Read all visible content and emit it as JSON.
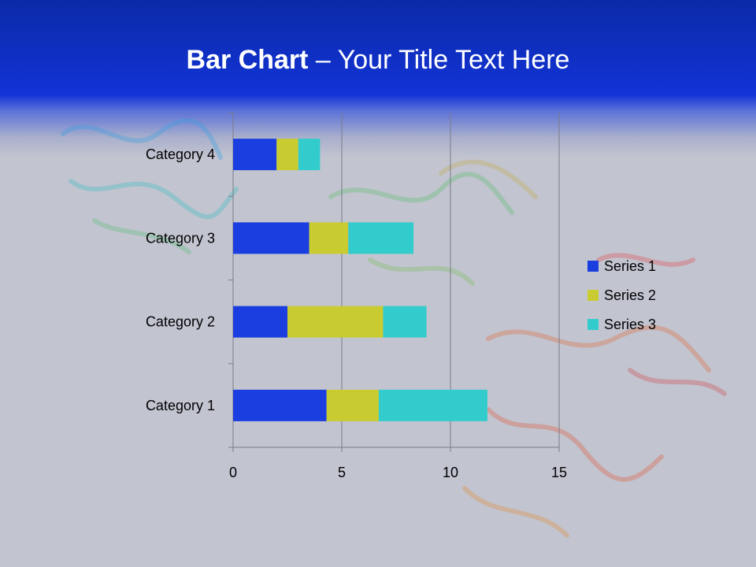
{
  "slide": {
    "title_bold": "Bar Chart",
    "title_dash": " – ",
    "title_rest": "Your Title Text Here"
  },
  "chart_data": {
    "type": "bar",
    "orientation": "horizontal",
    "stacked": true,
    "categories": [
      "Category 1",
      "Category 2",
      "Category 3",
      "Category 4"
    ],
    "series": [
      {
        "name": "Series 1",
        "values": [
          4.3,
          2.5,
          3.5,
          2.0
        ],
        "color": "#1a3ee0"
      },
      {
        "name": "Series 2",
        "values": [
          2.4,
          4.4,
          1.8,
          1.0
        ],
        "color": "#c8cc30"
      },
      {
        "name": "Series 3",
        "values": [
          5.0,
          2.0,
          3.0,
          1.0
        ],
        "color": "#33cccc"
      }
    ],
    "x_ticks": [
      "0",
      "5",
      "10",
      "15"
    ],
    "xlim": [
      0,
      15
    ],
    "grid": true,
    "legend": "right",
    "xlabel": "",
    "ylabel": ""
  },
  "colors": {
    "header": "#1233d6",
    "background": "#c2c4d0"
  }
}
